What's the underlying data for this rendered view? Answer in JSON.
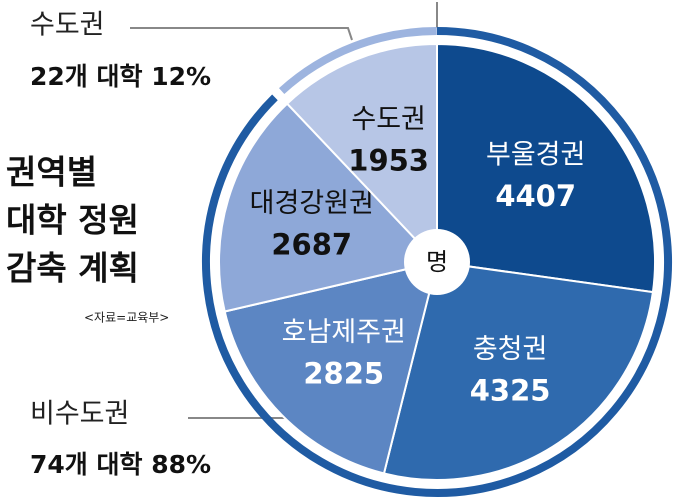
{
  "chart_data": {
    "type": "pie",
    "title": [
      "권역별",
      "대학 정원",
      "감축 계획"
    ],
    "source": "<자료=교육부>",
    "center_label": "명",
    "annotations": [
      {
        "label": "수도권",
        "detail": "22개 대학 12%"
      },
      {
        "label": "비수도권",
        "detail": "74개 대학 88%"
      }
    ],
    "categories": [
      "부울경권",
      "충청권",
      "호남제주권",
      "대경강원권",
      "수도권"
    ],
    "values": [
      4407,
      4325,
      2825,
      2687,
      1953
    ],
    "colors": [
      "#0e4a8e",
      "#2f6aae",
      "#5c86c3",
      "#8ea8d8",
      "#b7c6e6"
    ],
    "label_colors": [
      "#ffffff",
      "#ffffff",
      "#ffffff",
      "#111111",
      "#111111"
    ],
    "ring_colors": [
      "#1f5ba3",
      "#9db4df"
    ]
  }
}
